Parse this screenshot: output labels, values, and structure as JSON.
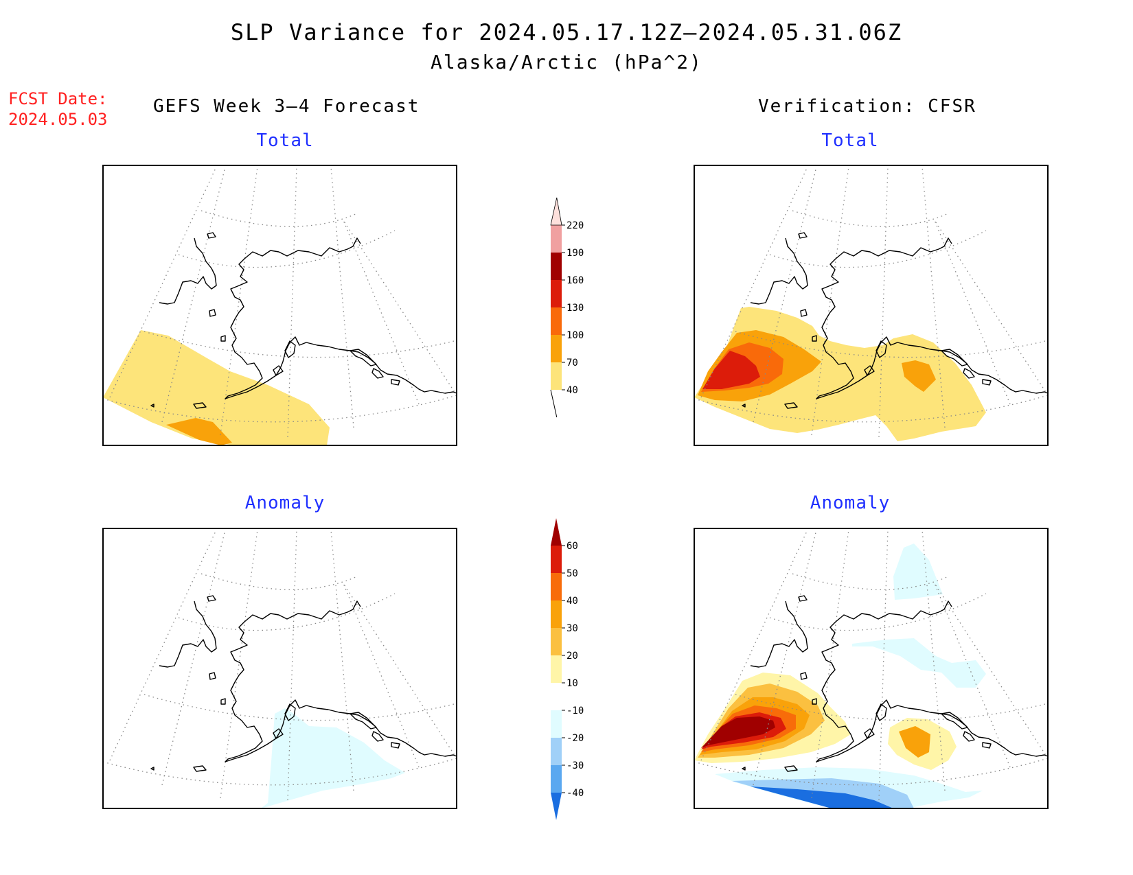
{
  "title": "SLP Variance for 2024.05.17.12Z–2024.05.31.06Z",
  "subtitle": "Alaska/Arctic (hPa^2)",
  "fcst_date_label": "FCST Date:",
  "fcst_date_value": "2024.05.03",
  "left_column_title": "GEFS Week 3–4 Forecast",
  "right_column_title": "Verification: CFSR",
  "panels": {
    "forecast_total": "Total",
    "verification_total": "Total",
    "forecast_anomaly": "Anomaly",
    "verification_anomaly": "Anomaly"
  },
  "colors": {
    "total_40_70": "#fde47a",
    "total_70_100": "#f9a20a",
    "total_100_130": "#f96a0a",
    "total_130_160": "#dc1c0a",
    "total_160_190": "#a00000",
    "total_190_220": "#f0a0a0",
    "total_above_220": "#fde0dc",
    "anom_10_20": "#fff5a8",
    "anom_20_30": "#fbc040",
    "anom_30_40": "#f9a20a",
    "anom_40_50": "#f86c0a",
    "anom_50_60": "#dc1c0a",
    "anom_above_60": "#a00000",
    "anom_m10_m20": "#e0fcff",
    "anom_m20_m30": "#a0d0f8",
    "anom_m30_m40": "#5aa8f0",
    "anom_below_m40": "#1a6ee0"
  },
  "colorbars": {
    "total": {
      "labels": [
        "40",
        "70",
        "100",
        "130",
        "160",
        "190",
        "220"
      ],
      "colors": [
        "#fde47a",
        "#f9a20a",
        "#f96a0a",
        "#dc1c0a",
        "#a00000",
        "#f0a0a0",
        "#fde0dc"
      ]
    },
    "anomaly": {
      "labels": [
        "-40",
        "-30",
        "-20",
        "-10",
        "10",
        "20",
        "30",
        "40",
        "50",
        "60"
      ],
      "colors": [
        "#1a6ee0",
        "#5aa8f0",
        "#a0d0f8",
        "#e0fcff",
        "#ffffff",
        "#fff5a8",
        "#fbc040",
        "#f9a20a",
        "#f86c0a",
        "#dc1c0a",
        "#a00000"
      ]
    }
  }
}
